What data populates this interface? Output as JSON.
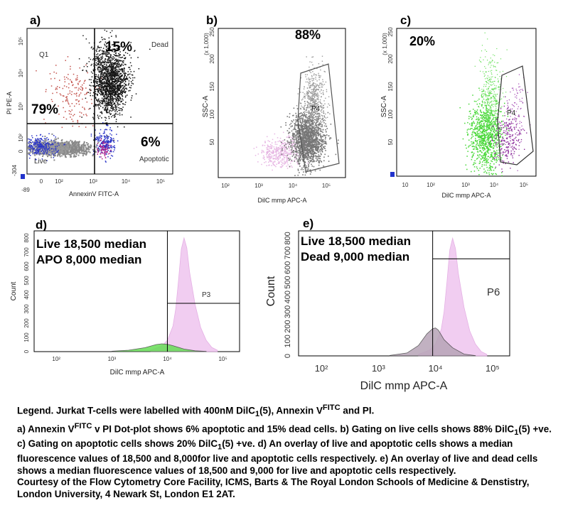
{
  "chart_data": [
    {
      "id": "a",
      "type": "scatter",
      "panel_label": "a)",
      "xlabel": "AnnexinV FITC-A",
      "ylabel": "PI PE-A",
      "x_ticks": [
        "-89",
        "0",
        "10²",
        "10³",
        "10⁴",
        "10⁵"
      ],
      "y_ticks": [
        "-304",
        "0",
        "10²",
        "10³",
        "10⁴",
        "10⁵"
      ],
      "quadrant_labels": {
        "ul": "Q1",
        "ur": "Dead",
        "ll": "Live",
        "lr": "Apoptotic"
      },
      "percentages": {
        "dead": "15%",
        "live": "79%",
        "apoptotic": "6%"
      },
      "scale": "biexponential"
    },
    {
      "id": "b",
      "type": "scatter",
      "panel_label": "b)",
      "xlabel": "DilC mmp APC-A",
      "ylabel": "SSC-A",
      "y_unit": "(x 1,000)",
      "x_ticks": [
        "10²",
        "10³",
        "10⁴",
        "10⁵"
      ],
      "y_ticks": [
        50,
        100,
        150,
        200,
        250
      ],
      "gate_label": "P4",
      "percentage": "88%"
    },
    {
      "id": "c",
      "type": "scatter",
      "panel_label": "c)",
      "xlabel": "DilC mmp APC-A",
      "ylabel": "SSC-A",
      "y_unit": "(x 1,000)",
      "x_ticks": [
        "10",
        "10²",
        "10³",
        "10⁴",
        "10⁵"
      ],
      "y_ticks": [
        50,
        100,
        150,
        200,
        250
      ],
      "gate_label": "P4",
      "percentage": "20%"
    },
    {
      "id": "d",
      "type": "area",
      "panel_label": "d)",
      "xlabel": "DilC mmp APC-A",
      "ylabel": "Count",
      "x_ticks": [
        "10²",
        "10³",
        "10⁴",
        "10⁵"
      ],
      "y_ticks": [
        0,
        100,
        200,
        300,
        400,
        500,
        600,
        700,
        800
      ],
      "gate_label": "P3",
      "annotations": [
        "Live 18,500 median",
        "APO 8,000 median"
      ],
      "series": [
        {
          "color": "#f0c8f0",
          "x": [
            3.7,
            3.9,
            4.0,
            4.1,
            4.15,
            4.2,
            4.25,
            4.3,
            4.35,
            4.4,
            4.5,
            4.6,
            4.7,
            4.8,
            4.9
          ],
          "values": [
            10,
            40,
            80,
            180,
            300,
            500,
            720,
            800,
            730,
            560,
            330,
            170,
            80,
            30,
            10
          ]
        },
        {
          "color": "#66dd55",
          "x": [
            3.0,
            3.3,
            3.6,
            3.8,
            3.9,
            4.0,
            4.1,
            4.2,
            4.3,
            4.5,
            4.7
          ],
          "values": [
            3,
            10,
            28,
            50,
            55,
            52,
            42,
            30,
            18,
            6,
            2
          ]
        }
      ],
      "xlim": [
        1.6,
        5.3
      ],
      "ylim": [
        0,
        850
      ],
      "median_line_x": 4.0,
      "gate_start_x": 4.0,
      "gate_level": 340
    },
    {
      "id": "e",
      "type": "area",
      "panel_label": "e)",
      "xlabel": "DilC mmp APC-A",
      "ylabel": "Count",
      "x_ticks": [
        "10²",
        "10³",
        "10⁴",
        "10⁵"
      ],
      "y_ticks": [
        0,
        100,
        200,
        300,
        400,
        500,
        600,
        700,
        800
      ],
      "gate_label": "P6",
      "annotations": [
        "Live 18,500 median",
        "Dead 9,000 median"
      ],
      "series": [
        {
          "color": "#f0c8f0",
          "x": [
            3.7,
            3.9,
            4.0,
            4.1,
            4.15,
            4.2,
            4.25,
            4.3,
            4.35,
            4.4,
            4.5,
            4.6,
            4.7,
            4.8,
            4.9
          ],
          "values": [
            10,
            40,
            80,
            180,
            300,
            500,
            720,
            800,
            730,
            560,
            330,
            170,
            80,
            30,
            10
          ]
        },
        {
          "color": "#b7a4b7",
          "x": [
            3.2,
            3.5,
            3.7,
            3.85,
            3.95,
            4.0,
            4.05,
            4.15,
            4.3,
            4.5,
            4.7
          ],
          "values": [
            3,
            20,
            70,
            150,
            185,
            190,
            175,
            110,
            55,
            12,
            2
          ]
        }
      ],
      "xlim": [
        1.6,
        5.3
      ],
      "ylim": [
        0,
        850
      ],
      "median_line_x": 3.95,
      "gate_start_x": 3.95,
      "gate_level": 660
    }
  ],
  "legend": {
    "line1_a": "Legend. Jurkat T-cells were labelled with 400nM DilC",
    "line1_sub1": "1",
    "line1_b": "(5), Annexin V",
    "line1_sup1": "FITC",
    "line1_c": " and PI.",
    "line2_a": "a)     Annexin V",
    "line2_sup": "FITC",
    "line2_b": " v PI Dot-plot shows 6% apoptotic and 15% dead cells. b) Gating on live cells shows 88% DilC",
    "line2_sub": "1",
    "line2_c": "(5) +ve. c) Gating on apoptotic cells shows 20% DilC",
    "line2_sub2": "1",
    "line2_d": "(5) +ve. d) An overlay of live and apoptotic cells shows a median fluorescence values of 18,500 and 8,000for live and apoptotic cells respectively. e) An overlay of live and dead cells shows a median fluorescence values of 18,500 and 9,000 for live and apoptotic cells respectively.",
    "courtesy": "Courtesy of the Flow Cytometry Core Facility, ICMS, Barts & The Royal London Schools of Medicine & Denstistry, London University, 4 Newark St, London E1 2AT."
  }
}
